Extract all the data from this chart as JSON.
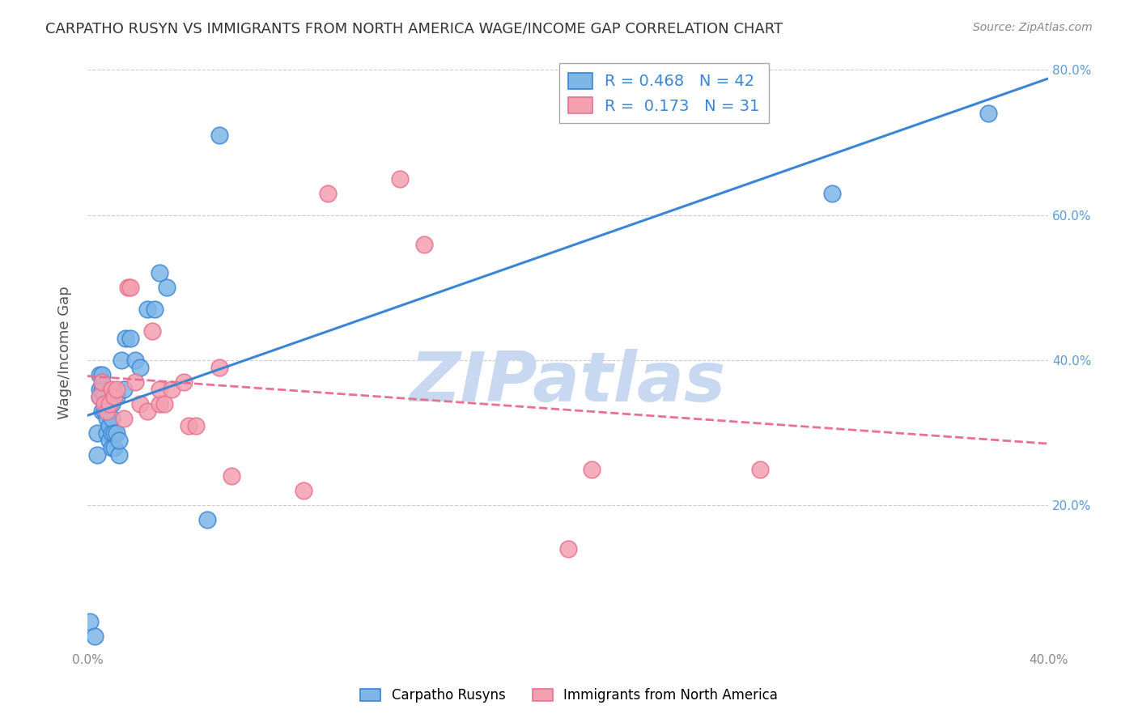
{
  "title": "CARPATHO RUSYN VS IMMIGRANTS FROM NORTH AMERICA WAGE/INCOME GAP CORRELATION CHART",
  "source": "Source: ZipAtlas.com",
  "ylabel": "Wage/Income Gap",
  "xlabel_blue": "Carpatho Rusyns",
  "xlabel_pink": "Immigrants from North America",
  "R_blue": 0.468,
  "N_blue": 42,
  "R_pink": 0.173,
  "N_pink": 31,
  "xlim": [
    0.0,
    0.4
  ],
  "ylim": [
    0.0,
    0.82
  ],
  "x_ticks": [
    0.0,
    0.1,
    0.2,
    0.3,
    0.4
  ],
  "y_ticks": [
    0.0,
    0.2,
    0.4,
    0.6,
    0.8
  ],
  "color_blue": "#7EB6E8",
  "color_pink": "#F4A0B0",
  "line_blue": "#3A86D4",
  "line_pink": "#E87090",
  "blue_points_x": [
    0.001,
    0.003,
    0.004,
    0.004,
    0.005,
    0.005,
    0.005,
    0.006,
    0.006,
    0.006,
    0.007,
    0.007,
    0.008,
    0.008,
    0.008,
    0.009,
    0.009,
    0.009,
    0.01,
    0.01,
    0.01,
    0.01,
    0.011,
    0.011,
    0.012,
    0.012,
    0.013,
    0.013,
    0.014,
    0.015,
    0.016,
    0.018,
    0.02,
    0.022,
    0.025,
    0.028,
    0.03,
    0.033,
    0.05,
    0.055,
    0.31,
    0.375
  ],
  "blue_points_y": [
    0.04,
    0.02,
    0.27,
    0.3,
    0.35,
    0.36,
    0.38,
    0.33,
    0.36,
    0.38,
    0.33,
    0.35,
    0.3,
    0.32,
    0.34,
    0.29,
    0.31,
    0.34,
    0.28,
    0.3,
    0.32,
    0.34,
    0.28,
    0.3,
    0.3,
    0.35,
    0.27,
    0.29,
    0.4,
    0.36,
    0.43,
    0.43,
    0.4,
    0.39,
    0.47,
    0.47,
    0.52,
    0.5,
    0.18,
    0.71,
    0.63,
    0.74
  ],
  "pink_points_x": [
    0.005,
    0.006,
    0.007,
    0.008,
    0.009,
    0.01,
    0.011,
    0.012,
    0.015,
    0.017,
    0.018,
    0.02,
    0.022,
    0.025,
    0.027,
    0.03,
    0.03,
    0.032,
    0.035,
    0.04,
    0.042,
    0.045,
    0.055,
    0.06,
    0.09,
    0.1,
    0.13,
    0.14,
    0.2,
    0.21,
    0.28
  ],
  "pink_points_y": [
    0.35,
    0.37,
    0.34,
    0.33,
    0.34,
    0.36,
    0.35,
    0.36,
    0.32,
    0.5,
    0.5,
    0.37,
    0.34,
    0.33,
    0.44,
    0.34,
    0.36,
    0.34,
    0.36,
    0.37,
    0.31,
    0.31,
    0.39,
    0.24,
    0.22,
    0.63,
    0.65,
    0.56,
    0.14,
    0.25,
    0.25
  ],
  "watermark": "ZIPatlas",
  "watermark_color": "#C8D8F0",
  "background_color": "#FFFFFF",
  "grid_color": "#CCCCCC",
  "grid_linestyle": "--"
}
